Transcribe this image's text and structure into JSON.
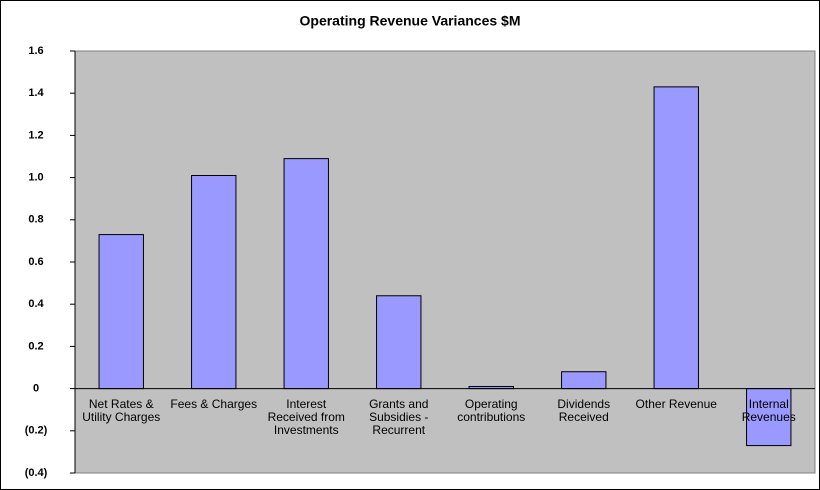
{
  "chart_data": {
    "type": "bar",
    "title": "Operating Revenue Variances    $M",
    "categories": [
      "Net Rates & Utility Charges",
      "Fees & Charges",
      "Interest Received from Investments",
      "Grants and Subsidies - Recurrent",
      "Operating contributions",
      "Dividends Received",
      "Other Revenue",
      "Internal Revenues"
    ],
    "values": [
      0.73,
      1.01,
      1.09,
      0.44,
      0.01,
      0.08,
      1.43,
      -0.27
    ],
    "color": "#9999ff",
    "ylim": [
      -0.4,
      1.6
    ],
    "yticks": [
      {
        "value": -0.4,
        "label": "(0.4)"
      },
      {
        "value": -0.2,
        "label": "(0.2)"
      },
      0,
      0.2,
      0.4,
      0.6,
      0.8,
      {
        "value": 1,
        "label": "1.0"
      },
      1.2,
      1.4,
      1.6
    ],
    "grid": false
  }
}
